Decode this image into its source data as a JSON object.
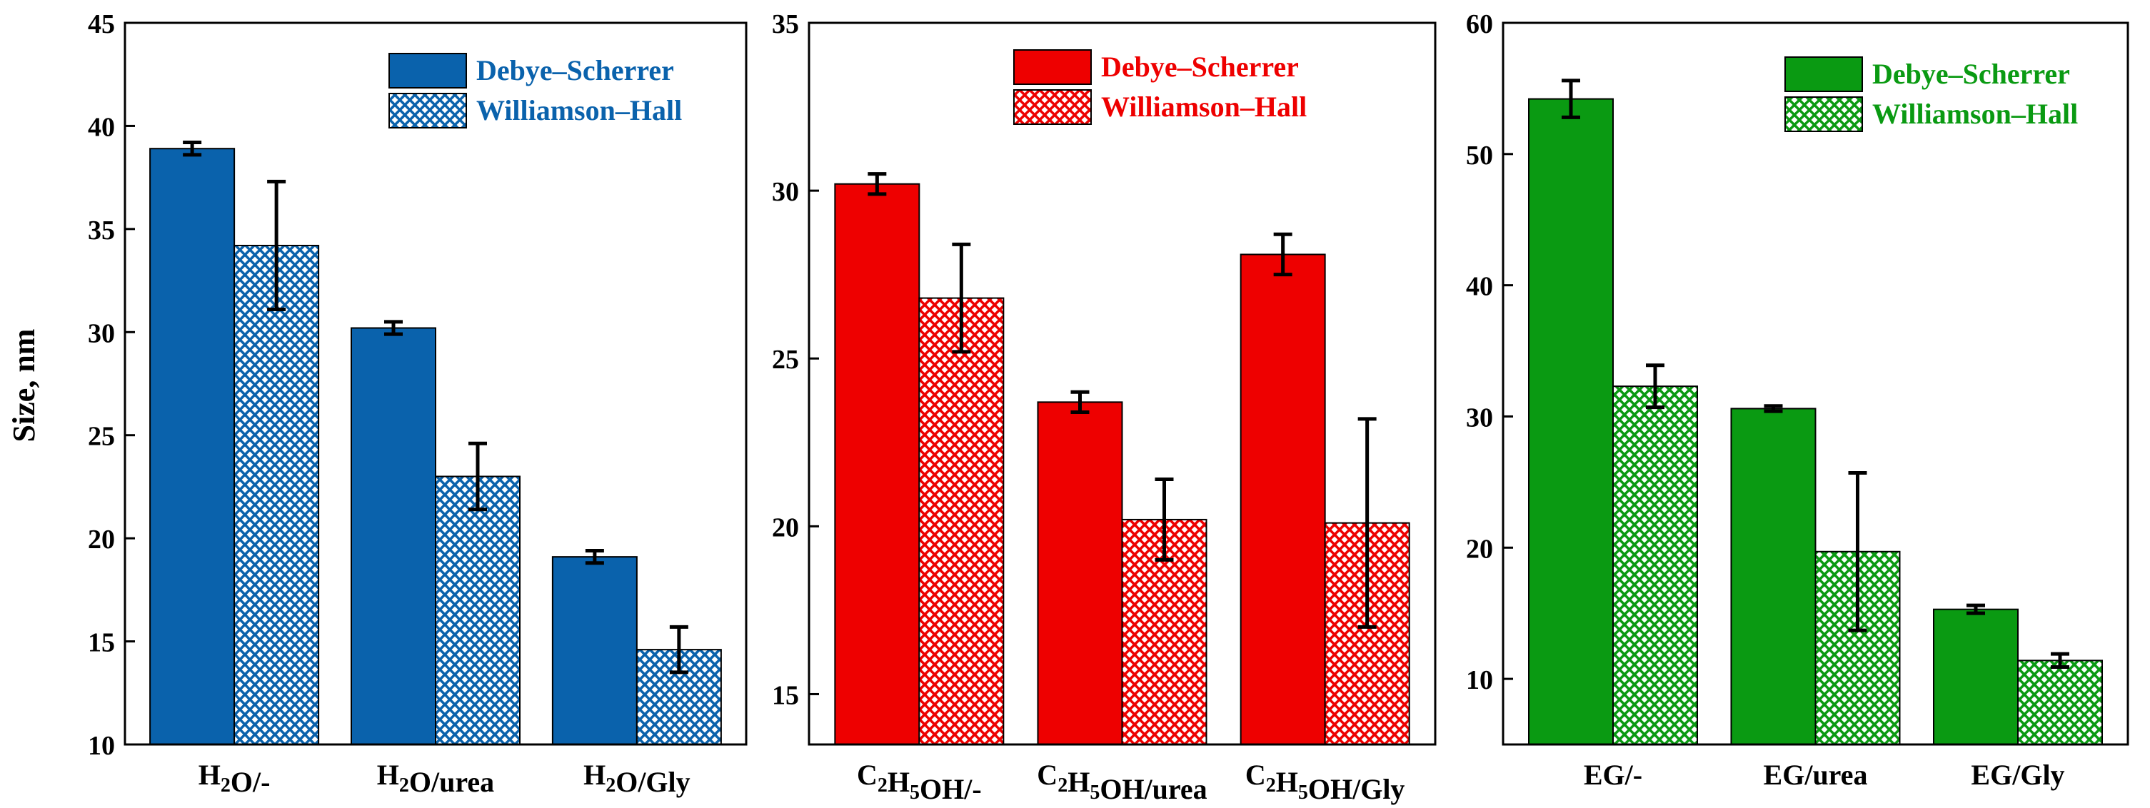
{
  "shared": {
    "ylabel": "Size, nm"
  },
  "chart_data": [
    {
      "type": "bar",
      "color": "#0a62ac",
      "categories": [
        {
          "base": "H",
          "sub": "2",
          "rest": "O/-"
        },
        {
          "base": "H",
          "sub": "2",
          "rest": "O/urea"
        },
        {
          "base": "H",
          "sub": "2",
          "rest": "O/Gly"
        }
      ],
      "series": [
        {
          "name": "Debye–Scherrer",
          "pattern": "solid",
          "values": [
            38.9,
            30.2,
            19.1
          ],
          "errors": [
            0.3,
            0.3,
            0.3
          ]
        },
        {
          "name": "Williamson–Hall",
          "pattern": "crosshatch",
          "values": [
            34.2,
            23.0,
            14.6
          ],
          "errors": [
            3.1,
            1.6,
            1.1
          ]
        }
      ],
      "ylim": [
        10,
        45
      ],
      "yticks": [
        10,
        15,
        20,
        25,
        30,
        35,
        40,
        45
      ],
      "ylabel": "Size, nm",
      "legend": "top-right"
    },
    {
      "type": "bar",
      "color": "#ee0000",
      "categories": [
        {
          "base": "C",
          "sub": "2",
          "rest": "H",
          "sub2": "5",
          "rest2": "OH/-"
        },
        {
          "base": "C",
          "sub": "2",
          "rest": "H",
          "sub2": "5",
          "rest2": "OH/urea"
        },
        {
          "base": "C",
          "sub": "2",
          "rest": "H",
          "sub2": "5",
          "rest2": "OH/Gly"
        }
      ],
      "series": [
        {
          "name": "Debye–Scherrer",
          "pattern": "solid",
          "values": [
            30.2,
            23.7,
            28.1
          ],
          "errors": [
            0.3,
            0.3,
            0.6
          ]
        },
        {
          "name": "Williamson–Hall",
          "pattern": "crosshatch",
          "values": [
            26.8,
            20.2,
            20.1
          ],
          "errors": [
            1.6,
            1.2,
            3.1
          ]
        }
      ],
      "ylim": [
        13.5,
        35
      ],
      "yticks": [
        15,
        20,
        25,
        30,
        35
      ],
      "legend": "top-right"
    },
    {
      "type": "bar",
      "color": "#0a9a12",
      "categories": [
        {
          "base": "EG/-"
        },
        {
          "base": "EG/urea"
        },
        {
          "base": "EG/Gly"
        }
      ],
      "series": [
        {
          "name": "Debye–Scherrer",
          "pattern": "solid",
          "values": [
            54.2,
            30.6,
            15.3
          ],
          "errors": [
            1.4,
            0.2,
            0.3
          ]
        },
        {
          "name": "Williamson–Hall",
          "pattern": "crosshatch",
          "values": [
            32.3,
            19.7,
            11.4
          ],
          "errors": [
            1.6,
            6.0,
            0.5
          ]
        }
      ],
      "ylim": [
        5,
        60
      ],
      "yticks": [
        10,
        20,
        30,
        40,
        50,
        60
      ],
      "legend": "top-right"
    }
  ]
}
